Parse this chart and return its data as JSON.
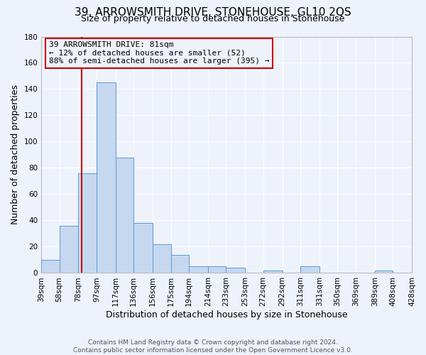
{
  "title": "39, ARROWSMITH DRIVE, STONEHOUSE, GL10 2QS",
  "subtitle": "Size of property relative to detached houses in Stonehouse",
  "xlabel": "Distribution of detached houses by size in Stonehouse",
  "ylabel": "Number of detached properties",
  "bin_edges": [
    39,
    58,
    78,
    97,
    117,
    136,
    156,
    175,
    194,
    214,
    233,
    253,
    272,
    292,
    311,
    331,
    350,
    369,
    389,
    408,
    428
  ],
  "bin_labels": [
    "39sqm",
    "58sqm",
    "78sqm",
    "97sqm",
    "117sqm",
    "136sqm",
    "156sqm",
    "175sqm",
    "194sqm",
    "214sqm",
    "233sqm",
    "253sqm",
    "272sqm",
    "292sqm",
    "311sqm",
    "331sqm",
    "350sqm",
    "369sqm",
    "389sqm",
    "408sqm",
    "428sqm"
  ],
  "counts": [
    10,
    36,
    76,
    145,
    88,
    38,
    22,
    14,
    5,
    5,
    4,
    0,
    2,
    0,
    5,
    0,
    0,
    0,
    2,
    0,
    0
  ],
  "bar_color": "#c5d8f0",
  "bar_edge_color": "#5b9bd5",
  "property_sqm": 81,
  "vline_color": "#cc0000",
  "annotation_title": "39 ARROWSMITH DRIVE: 81sqm",
  "annotation_line1": "← 12% of detached houses are smaller (52)",
  "annotation_line2": "88% of semi-detached houses are larger (395) →",
  "annotation_box_edge": "#cc0000",
  "footer_line1": "Contains HM Land Registry data © Crown copyright and database right 2024.",
  "footer_line2": "Contains public sector information licensed under the Open Government Licence v3.0.",
  "ylim": [
    0,
    180
  ],
  "yticks": [
    0,
    20,
    40,
    60,
    80,
    100,
    120,
    140,
    160,
    180
  ],
  "bg_color": "#eef2fb",
  "grid_color": "#ffffff",
  "title_fontsize": 11,
  "subtitle_fontsize": 9,
  "axis_label_fontsize": 9,
  "tick_fontsize": 7.5,
  "annotation_fontsize": 8,
  "footer_fontsize": 6.5
}
